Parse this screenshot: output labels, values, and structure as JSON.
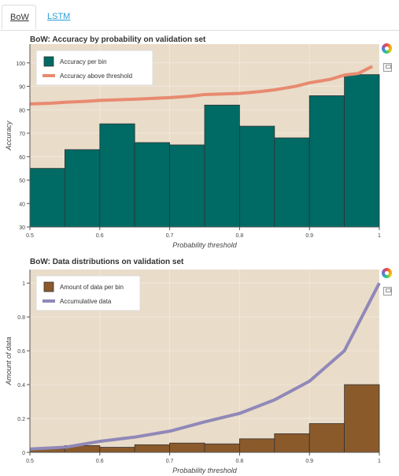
{
  "tabs": [
    {
      "label": "BoW",
      "active": true
    },
    {
      "label": "LSTM",
      "active": false
    }
  ],
  "colors": {
    "plot_bg": "#e9dcc9",
    "bar1": "#006a64",
    "line1": "#e88a70",
    "bar2": "#8b5a2b",
    "line2": "#9088b8"
  },
  "toolbar": [
    "bokeh-logo-icon",
    "save-icon"
  ],
  "chart_data": [
    {
      "type": "bar",
      "title": "BoW: Accuracy by probability on validation set",
      "xlabel": "Probability threshold",
      "ylabel": "Accuracy",
      "xlim": [
        0.5,
        1.0
      ],
      "ylim": [
        30,
        108
      ],
      "xticks": [
        "0.5",
        "0.6",
        "0.7",
        "0.8",
        "0.9",
        "1"
      ],
      "yticks": [
        "30",
        "40",
        "50",
        "60",
        "70",
        "80",
        "90",
        "100"
      ],
      "legend_position": "top-left",
      "bins": {
        "name": "Accuracy per bin",
        "edges": [
          0.5,
          0.55,
          0.6,
          0.65,
          0.7,
          0.75,
          0.8,
          0.85,
          0.9,
          0.95,
          1.0
        ],
        "values": [
          55,
          63,
          74,
          66,
          65,
          82,
          73,
          68,
          86,
          95
        ]
      },
      "line": {
        "name": "Accuracy above threshold",
        "x": [
          0.5,
          0.53,
          0.55,
          0.58,
          0.6,
          0.65,
          0.7,
          0.73,
          0.75,
          0.8,
          0.83,
          0.85,
          0.88,
          0.9,
          0.93,
          0.95,
          0.97,
          0.98,
          0.99
        ],
        "y": [
          82.5,
          82.8,
          83.2,
          83.6,
          84.0,
          84.5,
          85.2,
          85.8,
          86.5,
          87.0,
          87.8,
          88.5,
          90.0,
          91.5,
          93.0,
          94.8,
          95.5,
          97.0,
          98.5
        ]
      }
    },
    {
      "type": "bar",
      "title": "BoW: Data distributions on validation set",
      "xlabel": "Probability threshold",
      "ylabel": "Amount of data",
      "xlim": [
        0.5,
        1.0
      ],
      "ylim": [
        0,
        1.08
      ],
      "xticks": [
        "0.5",
        "0.6",
        "0.7",
        "0.8",
        "0.9",
        "1"
      ],
      "yticks": [
        "0",
        "0.2",
        "0.4",
        "0.6",
        "0.8",
        "1"
      ],
      "legend_position": "top-left",
      "bins": {
        "name": "Amount of data per bin",
        "edges": [
          0.5,
          0.55,
          0.6,
          0.65,
          0.7,
          0.75,
          0.8,
          0.85,
          0.9,
          0.95,
          1.0
        ],
        "values": [
          0.02,
          0.04,
          0.03,
          0.045,
          0.055,
          0.05,
          0.08,
          0.11,
          0.17,
          0.4
        ]
      },
      "line": {
        "name": "Accumulative data",
        "x": [
          0.5,
          0.55,
          0.6,
          0.65,
          0.7,
          0.75,
          0.8,
          0.85,
          0.9,
          0.95,
          1.0
        ],
        "y": [
          0.02,
          0.03,
          0.065,
          0.09,
          0.125,
          0.18,
          0.23,
          0.31,
          0.42,
          0.6,
          1.0
        ]
      }
    }
  ]
}
